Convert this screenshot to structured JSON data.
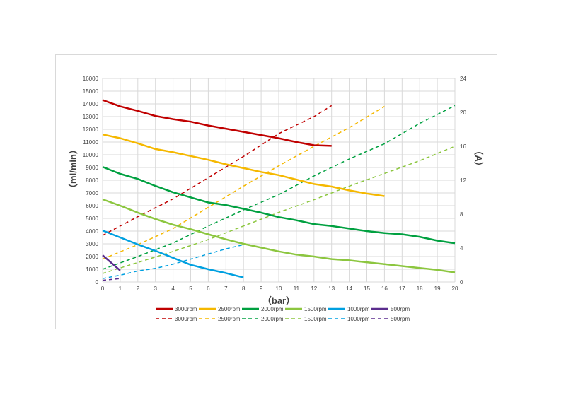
{
  "chart_data": {
    "type": "line",
    "xlabel": "（bar）",
    "ylabel": "（ml/min）",
    "y2label": "（A）",
    "xlim": [
      0,
      20
    ],
    "ylim": [
      0,
      16000
    ],
    "y2lim": [
      0,
      24
    ],
    "x_ticks": [
      "0",
      "1",
      "2",
      "3",
      "4",
      "5",
      "6",
      "7",
      "8",
      "9",
      "10",
      "11",
      "12",
      "13",
      "14",
      "15",
      "16",
      "17",
      "18",
      "19",
      "20"
    ],
    "y_ticks": [
      "0",
      "1000",
      "2000",
      "3000",
      "4000",
      "5000",
      "6000",
      "7000",
      "8000",
      "9000",
      "10000",
      "11000",
      "12000",
      "13000",
      "14000",
      "15000",
      "16000"
    ],
    "y2_ticks": [
      "0",
      "4",
      "8",
      "12",
      "16",
      "20",
      "24"
    ],
    "grid": true,
    "legend_placement": "bottom",
    "flow_series": [
      {
        "name": "3000rpm",
        "color": "#c00000",
        "x": [
          0,
          1,
          2,
          3,
          4,
          5,
          6,
          7,
          8,
          9,
          10,
          11,
          12,
          13
        ],
        "y": [
          14300,
          13800,
          13450,
          13050,
          12800,
          12600,
          12300,
          12050,
          11800,
          11550,
          11300,
          11000,
          10750,
          10700
        ]
      },
      {
        "name": "2500rpm",
        "color": "#f5b800",
        "x": [
          0,
          1,
          2,
          3,
          4,
          5,
          6,
          7,
          8,
          9,
          10,
          11,
          12,
          13,
          14,
          15,
          16
        ],
        "y": [
          11600,
          11300,
          10900,
          10450,
          10200,
          9900,
          9600,
          9250,
          8950,
          8650,
          8400,
          8050,
          7700,
          7500,
          7200,
          6950,
          6750
        ]
      },
      {
        "name": "2000rpm",
        "color": "#00a040",
        "x": [
          0,
          1,
          2,
          3,
          4,
          5,
          6,
          7,
          8,
          9,
          10,
          11,
          12,
          13,
          14,
          15,
          16,
          17,
          18,
          19,
          20
        ],
        "y": [
          9050,
          8500,
          8100,
          7550,
          7050,
          6650,
          6250,
          6050,
          5750,
          5450,
          5100,
          4850,
          4550,
          4400,
          4200,
          4000,
          3850,
          3750,
          3550,
          3250,
          3050
        ]
      },
      {
        "name": "1500rpm",
        "color": "#8cc63f",
        "x": [
          0,
          1,
          2,
          3,
          4,
          5,
          6,
          7,
          8,
          9,
          10,
          11,
          12,
          13,
          14,
          15,
          16,
          17,
          18,
          19,
          20
        ],
        "y": [
          6500,
          6000,
          5450,
          4950,
          4500,
          4150,
          3750,
          3350,
          3000,
          2700,
          2400,
          2150,
          2000,
          1800,
          1700,
          1550,
          1400,
          1250,
          1100,
          950,
          750
        ]
      },
      {
        "name": "1000rpm",
        "color": "#00a0e0",
        "x": [
          0,
          1,
          2,
          3,
          4,
          5,
          6,
          7,
          8
        ],
        "y": [
          4050,
          3500,
          2950,
          2450,
          1900,
          1350,
          1000,
          700,
          350
        ]
      },
      {
        "name": "500rpm",
        "color": "#5b2d8e",
        "x": [
          0,
          1
        ],
        "y": [
          2100,
          900
        ]
      }
    ],
    "current_series": [
      {
        "name": "3000rpm",
        "color": "#c00000",
        "x": [
          0,
          2,
          4,
          6,
          8,
          10,
          12,
          13
        ],
        "y": [
          5.5,
          7.7,
          9.8,
          12.3,
          14.8,
          17.5,
          19.5,
          20.8
        ]
      },
      {
        "name": "2500rpm",
        "color": "#f5b800",
        "x": [
          0,
          2,
          4,
          6,
          8,
          10,
          12,
          14,
          16
        ],
        "y": [
          2.7,
          4.4,
          6.3,
          8.8,
          11.3,
          13.7,
          16,
          18.2,
          20.7
        ]
      },
      {
        "name": "2000rpm",
        "color": "#00a040",
        "x": [
          0,
          2,
          4,
          6,
          8,
          10,
          12,
          14,
          16,
          18,
          20
        ],
        "y": [
          1.5,
          3,
          4.6,
          6.6,
          8.5,
          10.3,
          12.5,
          14.5,
          16.3,
          18.7,
          20.8
        ]
      },
      {
        "name": "1500rpm",
        "color": "#8cc63f",
        "x": [
          0,
          2,
          4,
          6,
          8,
          10,
          12,
          14,
          16,
          18,
          20
        ],
        "y": [
          1,
          2.3,
          3.6,
          5,
          6.6,
          8.2,
          9.7,
          11.3,
          12.8,
          14.3,
          16
        ]
      },
      {
        "name": "1000rpm",
        "color": "#00a0e0",
        "x": [
          0,
          1,
          2,
          3,
          4,
          5,
          6,
          7,
          8
        ],
        "y": [
          0.4,
          0.8,
          1.3,
          1.6,
          2.1,
          2.7,
          3.3,
          3.9,
          4.4
        ]
      },
      {
        "name": "500rpm",
        "color": "#5b2d8e",
        "x": [
          0,
          1
        ],
        "y": [
          0.2,
          0.4
        ]
      }
    ]
  }
}
